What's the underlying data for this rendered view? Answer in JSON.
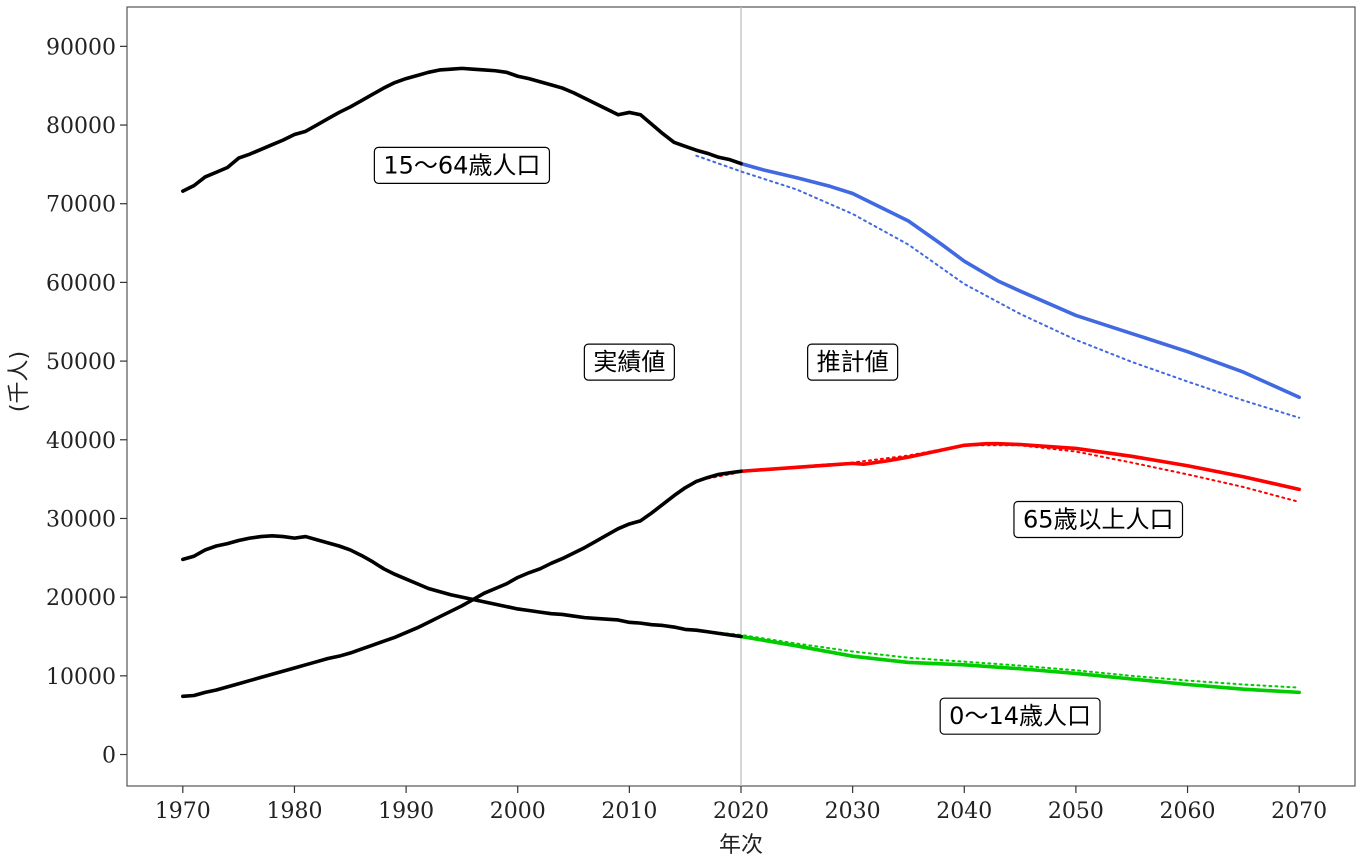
{
  "chart_data": {
    "type": "line",
    "title": "",
    "xlabel": "年次",
    "ylabel": "(千人)",
    "xlim": [
      1965,
      2075
    ],
    "ylim": [
      -4000,
      95000
    ],
    "grid": false,
    "x_ticks": [
      1970,
      1980,
      1990,
      2000,
      2010,
      2020,
      2030,
      2040,
      2050,
      2060,
      2070
    ],
    "y_ticks": [
      0,
      10000,
      20000,
      30000,
      40000,
      50000,
      60000,
      70000,
      80000,
      90000
    ],
    "divider_x": 2020,
    "colors": {
      "actual": "#000000",
      "working_age": "#4169e1",
      "elderly": "#ff0000",
      "children": "#00cc00",
      "divider": "#c0c0c0",
      "frame": "#555555"
    },
    "series": [
      {
        "key": "working_age",
        "label": "15〜64歳人口",
        "actual": {
          "x": [
            1970,
            1971,
            1972,
            1973,
            1974,
            1975,
            1976,
            1977,
            1978,
            1979,
            1980,
            1981,
            1982,
            1983,
            1984,
            1985,
            1986,
            1987,
            1988,
            1989,
            1990,
            1991,
            1992,
            1993,
            1994,
            1995,
            1996,
            1997,
            1998,
            1999,
            2000,
            2001,
            2002,
            2003,
            2004,
            2005,
            2006,
            2007,
            2008,
            2009,
            2010,
            2011,
            2012,
            2013,
            2014,
            2015,
            2016,
            2017,
            2018,
            2019,
            2020
          ],
          "y": [
            71600,
            72300,
            73400,
            74000,
            74600,
            75800,
            76300,
            76900,
            77500,
            78100,
            78800,
            79200,
            80000,
            80800,
            81600,
            82300,
            83100,
            83900,
            84700,
            85400,
            85900,
            86300,
            86700,
            87000,
            87100,
            87200,
            87100,
            87000,
            86900,
            86700,
            86200,
            85900,
            85500,
            85100,
            84700,
            84100,
            83400,
            82700,
            82000,
            81300,
            81600,
            81300,
            80100,
            78900,
            77800,
            77300,
            76800,
            76400,
            75900,
            75600,
            75100
          ]
        },
        "projection": {
          "x": [
            2020,
            2022,
            2025,
            2028,
            2030,
            2031,
            2033,
            2035,
            2038,
            2040,
            2043,
            2045,
            2050,
            2055,
            2060,
            2065,
            2070
          ],
          "y": [
            75100,
            74300,
            73300,
            72200,
            71300,
            70600,
            69200,
            67800,
            64800,
            62700,
            60200,
            58900,
            55800,
            53500,
            51200,
            48600,
            45400
          ]
        },
        "projection_alt": {
          "x": [
            2016,
            2020,
            2025,
            2030,
            2035,
            2040,
            2045,
            2050,
            2055,
            2060,
            2065,
            2070
          ],
          "y": [
            76100,
            74100,
            71800,
            68700,
            64800,
            59800,
            56000,
            52700,
            49900,
            47400,
            45000,
            42800
          ]
        }
      },
      {
        "key": "elderly",
        "label": "65歳以上人口",
        "actual": {
          "x": [
            1970,
            1971,
            1972,
            1973,
            1974,
            1975,
            1976,
            1977,
            1978,
            1979,
            1980,
            1981,
            1982,
            1983,
            1984,
            1985,
            1986,
            1987,
            1988,
            1989,
            1990,
            1991,
            1992,
            1993,
            1994,
            1995,
            1996,
            1997,
            1998,
            1999,
            2000,
            2001,
            2002,
            2003,
            2004,
            2005,
            2006,
            2007,
            2008,
            2009,
            2010,
            2011,
            2012,
            2013,
            2014,
            2015,
            2016,
            2017,
            2018,
            2019,
            2020
          ],
          "y": [
            7400,
            7500,
            7900,
            8200,
            8600,
            9000,
            9400,
            9800,
            10200,
            10600,
            11000,
            11400,
            11800,
            12200,
            12500,
            12900,
            13400,
            13900,
            14400,
            14900,
            15500,
            16100,
            16800,
            17500,
            18200,
            18900,
            19700,
            20500,
            21100,
            21700,
            22500,
            23100,
            23600,
            24300,
            24900,
            25600,
            26300,
            27100,
            27900,
            28700,
            29300,
            29700,
            30700,
            31800,
            32900,
            33900,
            34700,
            35200,
            35600,
            35800,
            36000
          ]
        },
        "projection": {
          "x": [
            2020,
            2025,
            2028,
            2030,
            2031,
            2033,
            2035,
            2038,
            2040,
            2042,
            2043,
            2045,
            2050,
            2055,
            2060,
            2065,
            2070
          ],
          "y": [
            36000,
            36500,
            36800,
            37000,
            36900,
            37300,
            37800,
            38700,
            39300,
            39500,
            39500,
            39400,
            38900,
            37900,
            36700,
            35300,
            33700
          ]
        },
        "projection_alt": {
          "x": [
            2016,
            2020,
            2025,
            2030,
            2035,
            2040,
            2045,
            2050,
            2055,
            2060,
            2065,
            2070
          ],
          "y": [
            34800,
            35900,
            36600,
            37100,
            38000,
            39300,
            39300,
            38500,
            37100,
            35600,
            34000,
            32100
          ]
        }
      },
      {
        "key": "children",
        "label": "0〜14歳人口",
        "actual": {
          "x": [
            1970,
            1971,
            1972,
            1973,
            1974,
            1975,
            1976,
            1977,
            1978,
            1979,
            1980,
            1981,
            1982,
            1983,
            1984,
            1985,
            1986,
            1987,
            1988,
            1989,
            1990,
            1991,
            1992,
            1993,
            1994,
            1995,
            1996,
            1997,
            1998,
            1999,
            2000,
            2001,
            2002,
            2003,
            2004,
            2005,
            2006,
            2007,
            2008,
            2009,
            2010,
            2011,
            2012,
            2013,
            2014,
            2015,
            2016,
            2017,
            2018,
            2019,
            2020
          ],
          "y": [
            24800,
            25200,
            26000,
            26500,
            26800,
            27200,
            27500,
            27700,
            27800,
            27700,
            27500,
            27700,
            27300,
            26900,
            26500,
            26000,
            25300,
            24500,
            23600,
            22900,
            22300,
            21700,
            21100,
            20700,
            20300,
            20000,
            19700,
            19400,
            19100,
            18800,
            18500,
            18300,
            18100,
            17900,
            17800,
            17600,
            17400,
            17300,
            17200,
            17100,
            16800,
            16700,
            16500,
            16400,
            16200,
            15900,
            15800,
            15600,
            15400,
            15200,
            15000
          ]
        },
        "projection": {
          "x": [
            2020,
            2025,
            2030,
            2035,
            2040,
            2045,
            2050,
            2055,
            2060,
            2065,
            2070
          ],
          "y": [
            15000,
            13800,
            12500,
            11700,
            11400,
            10900,
            10300,
            9600,
            8900,
            8300,
            7900
          ]
        },
        "projection_alt": {
          "x": [
            2016,
            2020,
            2025,
            2030,
            2035,
            2040,
            2045,
            2050,
            2055,
            2060,
            2065,
            2070
          ],
          "y": [
            15800,
            15200,
            14100,
            13100,
            12300,
            11800,
            11300,
            10700,
            10000,
            9400,
            8900,
            8500
          ]
        }
      }
    ],
    "annotations": [
      {
        "key": "working_age_label",
        "text": "15〜64歳人口",
        "x": 1995,
        "y": 75000
      },
      {
        "key": "actual_label",
        "text": "実績値",
        "x": 2010,
        "y": 50000
      },
      {
        "key": "projection_label",
        "text": "推計値",
        "x": 2030,
        "y": 50000
      },
      {
        "key": "elderly_label",
        "text": "65歳以上人口",
        "x": 2052,
        "y": 30000
      },
      {
        "key": "children_label",
        "text": "0〜14歳人口",
        "x": 2045,
        "y": 5000
      }
    ]
  }
}
